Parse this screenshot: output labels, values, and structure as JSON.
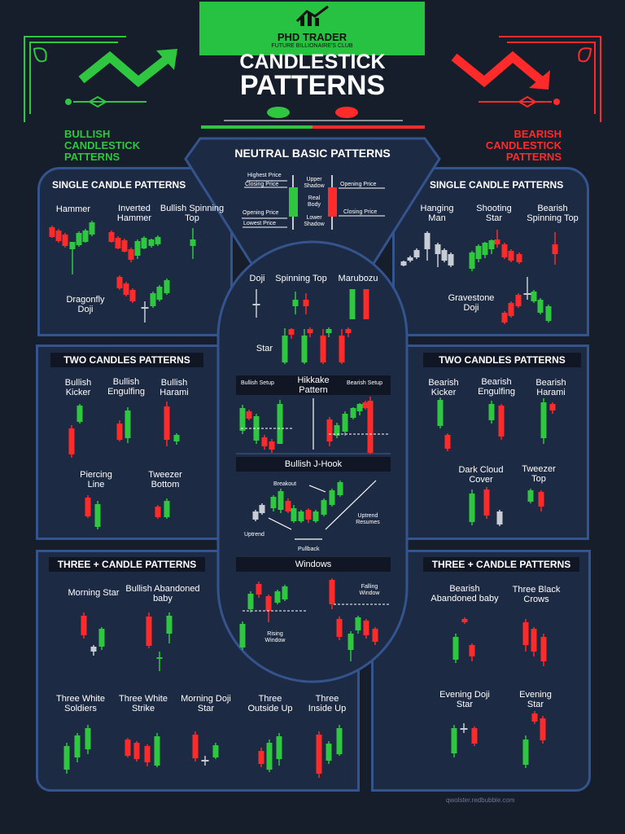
{
  "brand": {
    "name": "PHD TRADER",
    "tagline": "FUTURE BILLIONAIRE'S CLUB"
  },
  "title": {
    "line1": "CANDLESTICK",
    "line2": "PATTERNS"
  },
  "bullish_heading": {
    "line1": "BULLISH",
    "line2": "CANDLESTICK",
    "line3": "PATTERNS"
  },
  "bearish_heading": {
    "line1": "BEARISH",
    "line2": "CANDLESTICK",
    "line3": "PATTERNS"
  },
  "neutral": {
    "title": "NEUTRAL BASIC PATTERNS",
    "labels": {
      "highest_price": "Highest Price",
      "closing_price_left": "Closing Price",
      "opening_price_left": "Opening Price",
      "lowest_price": "Lowest Price",
      "upper_shadow": "Upper Shadow",
      "real_body": "Real Body",
      "lower_shadow": "Lower Shadow",
      "opening_price_right": "Opening Price",
      "closing_price_right": "Closing Price"
    }
  },
  "bullish_single": {
    "header": "SINGLE CANDLE PATTERNS",
    "hammer": "Hammer",
    "inverted_hammer": "Inverted Hammer",
    "bullish_spinning_top": "Bullish Spinning Top",
    "dragonfly_doji": "Dragonfly Doji"
  },
  "bearish_single": {
    "header": "SINGLE CANDLE PATTERNS",
    "hanging_man": "Hanging Man",
    "shooting_star": "Shooting Star",
    "bearish_spinning_top": "Bearish Spinning Top",
    "gravestone_doji": "Gravestone Doji"
  },
  "bullish_two": {
    "header": "TWO CANDLES PATTERNS",
    "bullish_kicker": "Bullish Kicker",
    "bullish_engulfing": "Bullish Engulfing",
    "bullish_harami": "Bullish Harami",
    "piercing_line": "Piercing Line",
    "tweezer_bottom": "Tweezer Bottom"
  },
  "bearish_two": {
    "header": "TWO CANDLES PATTERNS",
    "bearish_kicker": "Bearish Kicker",
    "bearish_engulfing": "Bearish Engulfing",
    "bearish_harami": "Bearish Harami",
    "dark_cloud_cover": "Dark Cloud Cover",
    "tweezer_top": "Tweezer Top"
  },
  "center": {
    "doji": "Doji",
    "spinning_top": "Spinning Top",
    "marubozu": "Marubozu",
    "star": "Star",
    "bullish_setup": "Bullish Setup",
    "hikkake_pattern": "Hikkake Pattern",
    "bearish_setup": "Bearish Setup",
    "bullish_j_hook": "Bullish J-Hook",
    "breakout": "Breakout",
    "uptrend": "Uptrend",
    "pullback": "Pullback",
    "uptrend_resumes": "Uptrend Resumes",
    "windows": "Windows",
    "falling_window": "Falling Window",
    "rising_window": "Rising Window"
  },
  "bullish_three": {
    "header": "THREE + CANDLE PATTERNS",
    "morning_star": "Morning Star",
    "bullish_abandoned_baby": "Bullish Abandoned baby",
    "three_white_soldiers": "Three White Soldiers",
    "three_white_strike": "Three White Strike",
    "morning_doji_star": "Morning Doji Star",
    "three_outside_up": "Three Outside Up",
    "three_inside_up": "Three Inside Up"
  },
  "bearish_three": {
    "header": "THREE + CANDLE PATTERNS",
    "bearish_abandoned_baby": "Bearish Abandoned baby",
    "three_black_crows": "Three Black Crows",
    "evening_doji_star": "Evening Doji Star",
    "evening_star": "Evening Star"
  },
  "watermark": "qwolster.redbubble.com",
  "colors": {
    "background": "#161d2b",
    "panel": "#1d2a44",
    "border": "#34548d",
    "bull": "#2fc640",
    "bear": "#ff2a2a",
    "logo": "#27c242"
  }
}
